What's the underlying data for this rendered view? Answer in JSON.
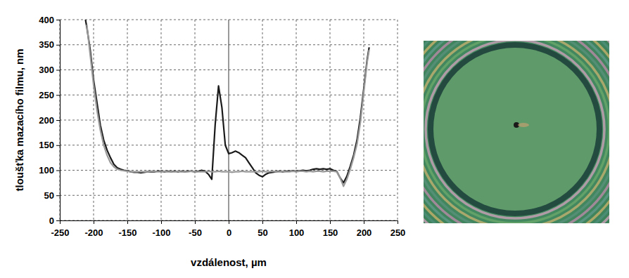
{
  "chart_data": {
    "type": "line",
    "x_label": "vzdálenost, µm",
    "y_label": "tloušťka mazacího filmu, nm",
    "x": [
      -212,
      -210,
      -205,
      -200,
      -195,
      -190,
      -185,
      -180,
      -175,
      -170,
      -165,
      -160,
      -155,
      -150,
      -145,
      -140,
      -135,
      -130,
      -125,
      -120,
      -115,
      -110,
      -105,
      -100,
      -95,
      -90,
      -85,
      -80,
      -75,
      -70,
      -65,
      -60,
      -55,
      -50,
      -45,
      -40,
      -35,
      -30,
      -25,
      -20,
      -15,
      -10,
      -5,
      0,
      5,
      10,
      15,
      20,
      25,
      30,
      35,
      40,
      45,
      50,
      55,
      60,
      65,
      70,
      75,
      80,
      85,
      90,
      95,
      100,
      105,
      110,
      115,
      120,
      125,
      130,
      135,
      140,
      145,
      150,
      155,
      160,
      165,
      170,
      175,
      180,
      185,
      190,
      195,
      200,
      205,
      208
    ],
    "series": [
      {
        "color": "#1a1a1a",
        "values": [
          400,
          385,
          340,
          280,
          235,
          190,
          160,
          140,
          125,
          112,
          105,
          102,
          100,
          99,
          97,
          96,
          96,
          95,
          96,
          97,
          97,
          97,
          98,
          98,
          97,
          98,
          97,
          98,
          97,
          98,
          97,
          98,
          98,
          97,
          98,
          100,
          98,
          92,
          82,
          190,
          268,
          225,
          150,
          133,
          135,
          138,
          135,
          130,
          125,
          115,
          105,
          95,
          90,
          87,
          92,
          95,
          96,
          97,
          98,
          97,
          98,
          98,
          99,
          98,
          99,
          100,
          99,
          100,
          102,
          103,
          102,
          103,
          102,
          103,
          100,
          98,
          85,
          75,
          88,
          108,
          130,
          160,
          205,
          262,
          320,
          345
        ]
      },
      {
        "color": "#999999",
        "values": [
          null,
          390,
          330,
          270,
          220,
          180,
          150,
          130,
          115,
          107,
          102,
          100,
          99,
          98,
          97,
          97,
          97,
          97,
          97,
          97,
          98,
          98,
          97,
          97,
          98,
          97,
          97,
          97,
          98,
          97,
          97,
          97,
          98,
          97,
          97,
          97,
          97,
          98,
          97,
          97,
          98,
          97,
          97,
          97,
          96,
          97,
          97,
          98,
          97,
          97,
          97,
          97,
          97,
          98,
          97,
          97,
          98,
          97,
          97,
          98,
          97,
          97,
          98,
          97,
          98,
          98,
          97,
          98,
          97,
          98,
          98,
          97,
          98,
          98,
          98,
          97,
          85,
          68,
          82,
          102,
          125,
          152,
          195,
          255,
          315,
          340
        ]
      }
    ],
    "xlim": [
      -250,
      250
    ],
    "ylim": [
      0,
      400
    ],
    "xticks": [
      -250,
      -200,
      -150,
      -100,
      -50,
      0,
      50,
      100,
      150,
      200,
      250
    ],
    "yticks": [
      0,
      50,
      100,
      150,
      200,
      250,
      300,
      350,
      400
    ],
    "grid": true
  }
}
